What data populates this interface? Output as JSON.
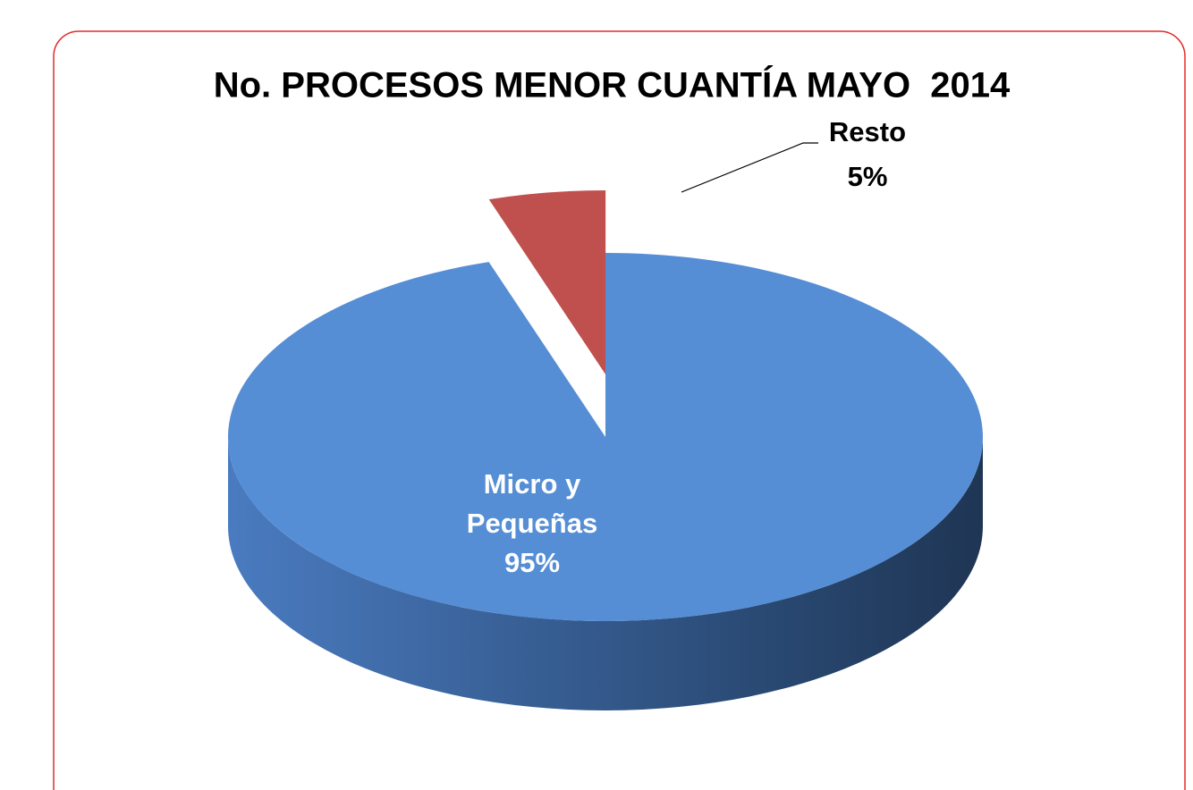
{
  "chart_data": {
    "type": "pie",
    "title": "No. PROCESOS MENOR CUANTÍA MAYO  2014",
    "categories": [
      "Micro y Pequeñas",
      "Resto"
    ],
    "values": [
      95,
      5
    ],
    "value_labels": [
      "95%",
      "5%"
    ],
    "colors": [
      "#558ed5",
      "#c0504d"
    ],
    "explode": [
      false,
      true
    ],
    "three_d": true
  }
}
